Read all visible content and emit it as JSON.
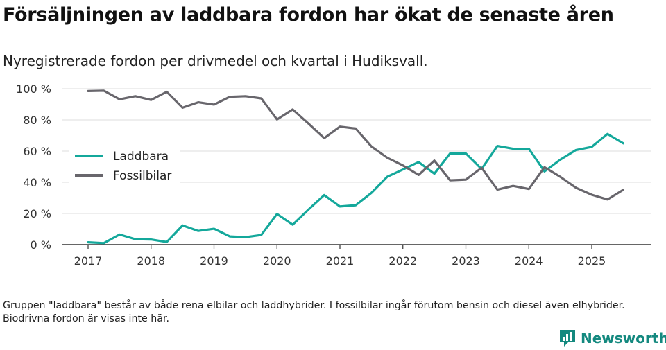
{
  "title": "Försäljningen av laddbara fordon har ökat de senaste åren",
  "subtitle": "Nyregistrerade fordon per drivmedel och kvartal i Hudiksvall.",
  "footnote": "Gruppen \"laddbara\" består av både rena elbilar och laddhybrider. I fossilbilar ingår förutom bensin och diesel även elhybrider. Biodrivna fordon är visas inte här.",
  "brand": {
    "name": "Newsworthy",
    "icon": "bar-chart-logo-icon",
    "color": "#14897f"
  },
  "chart_data": {
    "type": "line",
    "title": "Försäljningen av laddbara fordon har ökat de senaste åren",
    "xlabel": "",
    "ylabel": "",
    "ylim": [
      0,
      100
    ],
    "xlim": [
      2017,
      2025.5
    ],
    "yticks": [
      0,
      20,
      40,
      60,
      80,
      100
    ],
    "ytick_labels": [
      "0 %",
      "20 %",
      "40 %",
      "60 %",
      "80 %",
      "100 %"
    ],
    "xticks": [
      2017,
      2018,
      2019,
      2020,
      2021,
      2022,
      2023,
      2024,
      2025
    ],
    "xtick_labels": [
      "2017",
      "2018",
      "2019",
      "2020",
      "2021",
      "2022",
      "2023",
      "2024",
      "2025"
    ],
    "legend_position": "left",
    "x": [
      2017,
      2017.25,
      2017.5,
      2017.75,
      2018,
      2018.25,
      2018.5,
      2018.75,
      2019,
      2019.25,
      2019.5,
      2019.75,
      2020,
      2020.25,
      2020.5,
      2020.75,
      2021,
      2021.25,
      2021.5,
      2021.75,
      2022,
      2022.25,
      2022.5,
      2022.75,
      2023,
      2023.25,
      2023.5,
      2023.75,
      2024,
      2024.25,
      2024.5,
      2024.75,
      2025,
      2025.25,
      2025.5
    ],
    "series": [
      {
        "name": "Laddbara",
        "color": "#14a89b",
        "values": [
          1.5,
          1,
          6.5,
          3.5,
          3.3,
          1.7,
          12.3,
          8.8,
          10.2,
          5.3,
          4.8,
          6.2,
          19.7,
          12.8,
          22.5,
          31.8,
          24.5,
          25.3,
          33.2,
          43.5,
          48.2,
          53,
          45.5,
          58.5,
          58.5,
          48.5,
          63.3,
          61.5,
          61.5,
          47,
          54.5,
          60.7,
          62.7,
          71,
          65
        ]
      },
      {
        "name": "Fossilbilar",
        "color": "#68666c",
        "values": [
          98.5,
          98.7,
          93.2,
          95.2,
          92.8,
          98,
          87.8,
          91.3,
          89.8,
          94.8,
          95.2,
          93.8,
          80.3,
          86.7,
          77.7,
          68.3,
          75.7,
          74.5,
          63,
          55.8,
          50.8,
          44.7,
          53.9,
          41.3,
          41.7,
          49.3,
          35.3,
          37.7,
          35.7,
          49.7,
          43.5,
          36.5,
          32,
          29,
          35.2
        ]
      }
    ]
  }
}
